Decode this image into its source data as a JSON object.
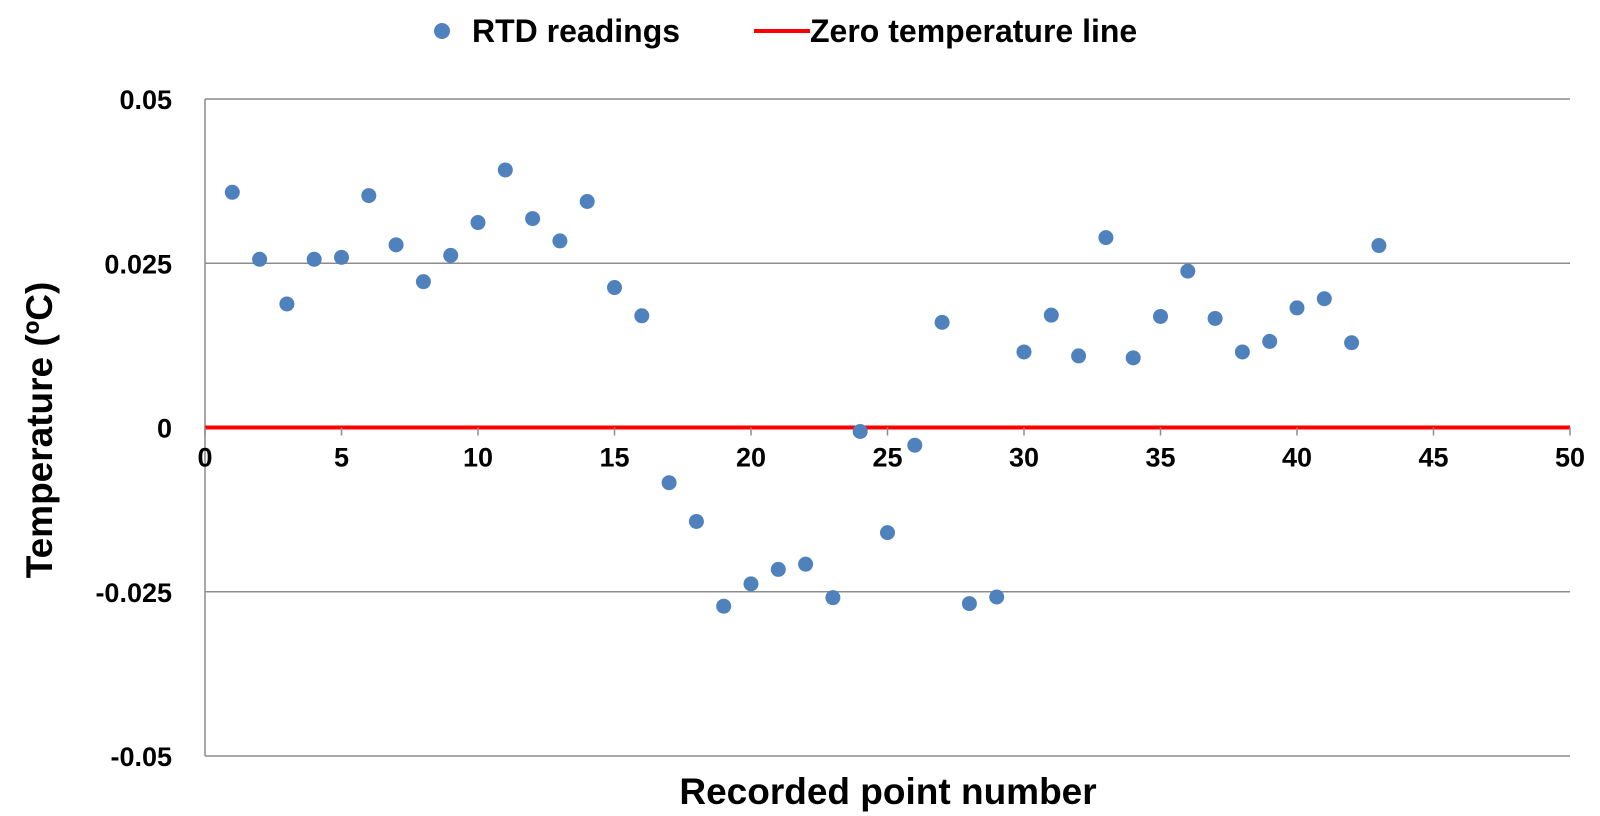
{
  "chart_data": {
    "type": "scatter",
    "xlabel": "Recorded point number",
    "ylabel": "Temperature (ºC)",
    "xlim": [
      0,
      50
    ],
    "ylim": [
      -0.05,
      0.05
    ],
    "x_ticks": [
      0,
      5,
      10,
      15,
      20,
      25,
      30,
      35,
      40,
      45,
      50
    ],
    "y_ticks": [
      0.05,
      0.025,
      0,
      -0.025,
      -0.05
    ],
    "x_tick_labels": [
      "0",
      "5",
      "10",
      "15",
      "20",
      "25",
      "30",
      "35",
      "40",
      "45",
      "50"
    ],
    "y_tick_labels": [
      "0.05",
      "0.025",
      "0",
      "-0.025",
      "-0.05"
    ],
    "grid": "horizontal",
    "legend_position": "top",
    "series": [
      {
        "name": "RTD readings",
        "kind": "scatter",
        "color": "#4f81bd",
        "x": [
          1,
          2,
          3,
          4,
          5,
          6,
          7,
          8,
          9,
          10,
          11,
          12,
          13,
          14,
          15,
          16,
          17,
          18,
          19,
          20,
          21,
          22,
          23,
          24,
          25,
          26,
          27,
          28,
          29,
          30,
          31,
          32,
          33,
          34,
          35,
          36,
          37,
          38,
          39,
          40,
          41,
          42,
          43
        ],
        "y": [
          0.0358,
          0.0256,
          0.0188,
          0.0256,
          0.0259,
          0.0353,
          0.0278,
          0.0222,
          0.0262,
          0.0312,
          0.0392,
          0.0318,
          0.0284,
          0.0344,
          0.0213,
          0.017,
          -0.0084,
          -0.0143,
          -0.0272,
          -0.0238,
          -0.0216,
          -0.0208,
          -0.0259,
          -0.0006,
          -0.016,
          -0.0027,
          0.016,
          -0.0268,
          -0.0258,
          0.0115,
          0.0171,
          0.0109,
          0.0289,
          0.0106,
          0.0169,
          0.0238,
          0.0166,
          0.0115,
          0.0131,
          0.0182,
          0.0196,
          0.0129,
          0.0277
        ]
      },
      {
        "name": "Zero temperature line",
        "kind": "line",
        "color": "#ff0000",
        "x": [
          0,
          50
        ],
        "y": [
          0,
          0
        ]
      }
    ]
  }
}
